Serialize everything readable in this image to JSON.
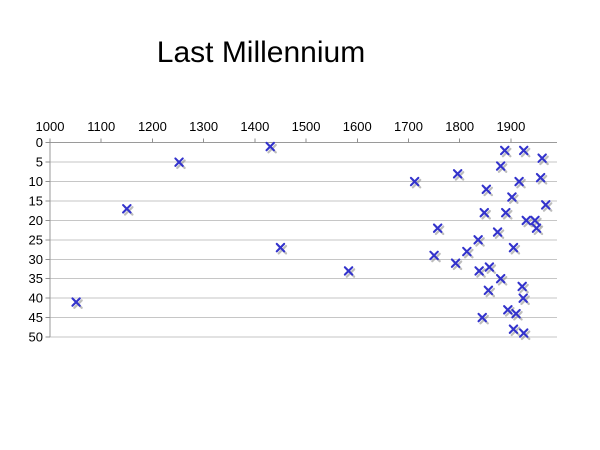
{
  "slide": {
    "background": "#FFFFFF"
  },
  "chart_data": {
    "type": "scatter",
    "title": "Last Millennium",
    "legend": "none",
    "x_axis": {
      "position": "top",
      "min": 1000,
      "max": 1990,
      "tick_labels": [
        "1000",
        "1100",
        "1200",
        "1300",
        "1400",
        "1500",
        "1600",
        "1700",
        "1800",
        "1900"
      ]
    },
    "y_axis": {
      "position": "left",
      "inverted": true,
      "min": 0,
      "max": 50,
      "tick_step": 5,
      "tick_labels": [
        "0",
        "5",
        "10",
        "15",
        "20",
        "25",
        "30",
        "35",
        "40",
        "45",
        "50"
      ]
    },
    "grid": {
      "horizontal": true,
      "vertical": false
    },
    "marker": {
      "shape": "x",
      "color": "#3333CC",
      "shadow": true
    },
    "colors": {
      "gridline": "#C6C6C6",
      "axis": "#9A9A9A",
      "tick": "#8F8F8F",
      "label": "#000000",
      "marker_shadow": "rgba(135,135,135,0.55)"
    },
    "points_format": [
      "year",
      "value"
    ],
    "points": [
      [
        1051,
        41
      ],
      [
        1150,
        17
      ],
      [
        1252,
        5
      ],
      [
        1430,
        1
      ],
      [
        1450,
        27
      ],
      [
        1583,
        33
      ],
      [
        1712,
        10
      ],
      [
        1750,
        29
      ],
      [
        1757,
        22
      ],
      [
        1792,
        31
      ],
      [
        1796,
        8
      ],
      [
        1814,
        28
      ],
      [
        1836,
        25
      ],
      [
        1838,
        33
      ],
      [
        1844,
        45
      ],
      [
        1848,
        18
      ],
      [
        1852,
        12
      ],
      [
        1856,
        38
      ],
      [
        1858,
        32
      ],
      [
        1874,
        23
      ],
      [
        1880,
        6
      ],
      [
        1880,
        35
      ],
      [
        1888,
        2
      ],
      [
        1890,
        18
      ],
      [
        1894,
        43
      ],
      [
        1902,
        14
      ],
      [
        1905,
        27
      ],
      [
        1905,
        48
      ],
      [
        1910,
        44
      ],
      [
        1916,
        10
      ],
      [
        1922,
        37
      ],
      [
        1924,
        40
      ],
      [
        1925,
        2
      ],
      [
        1925,
        49
      ],
      [
        1930,
        20
      ],
      [
        1947,
        20
      ],
      [
        1950,
        22
      ],
      [
        1958,
        9
      ],
      [
        1961,
        4
      ],
      [
        1968,
        16
      ]
    ]
  }
}
